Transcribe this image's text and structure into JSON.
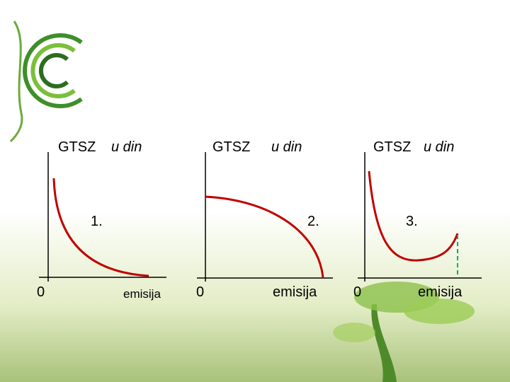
{
  "panels": [
    {
      "y_label": "GTSZ",
      "y_unit": "u din",
      "number": "1.",
      "origin": "0",
      "x_label": "emisija"
    },
    {
      "y_label": "GTSZ",
      "y_unit": "u din",
      "number": "2.",
      "origin": "0",
      "x_label": "emisija"
    },
    {
      "y_label": "GTSZ",
      "y_unit": "u din",
      "number": "3.",
      "origin": "0",
      "x_label": "emisija"
    }
  ]
}
